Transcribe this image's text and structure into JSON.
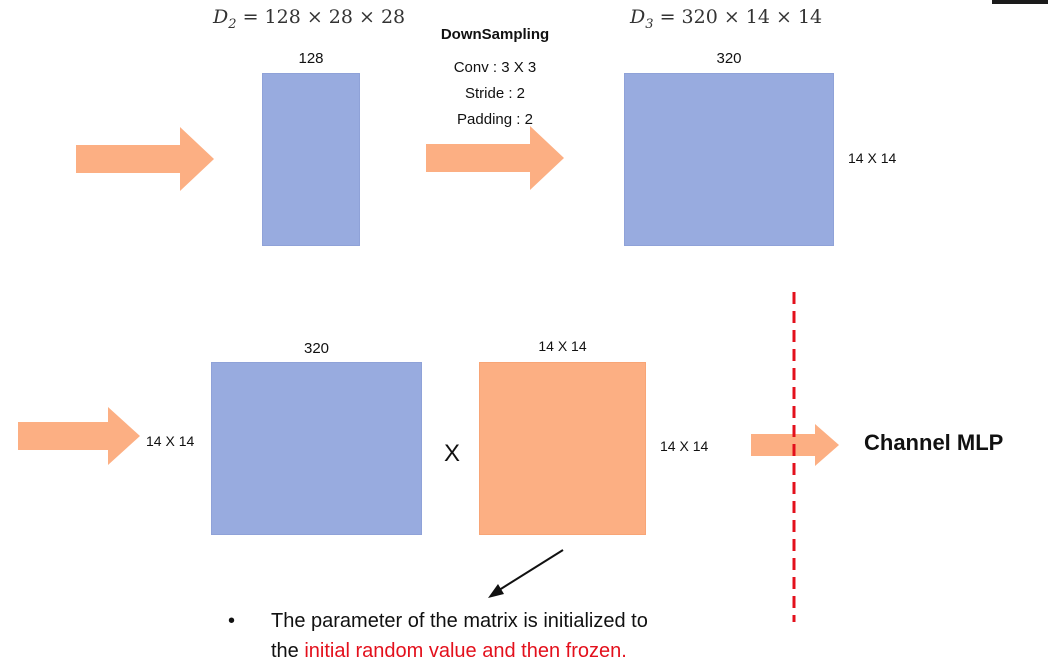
{
  "colors": {
    "blue_block": "#98abdf",
    "orange_block": "#fcaf83",
    "arrow": "#fcaf83",
    "divider": "#e3101c",
    "highlight": "#e3101c"
  },
  "top": {
    "d2_label": {
      "var": "D",
      "sub": "2",
      "expr": "= 128 × 28 × 28"
    },
    "d3_label": {
      "var": "D",
      "sub": "3",
      "expr": "= 320 × 14 × 14"
    },
    "block1_top": "128",
    "downsampling": {
      "title": "DownSampling",
      "conv": "Conv : 3 X 3",
      "stride": "Stride : 2",
      "padding": "Padding : 2"
    },
    "block2_top": "320",
    "block2_side": "14 X 14"
  },
  "bottom": {
    "block_blue_top": "320",
    "block_blue_left": "14 X 14",
    "multiply": "X",
    "block_orange_top": "14 X 14",
    "block_orange_right": "14 X 14",
    "output_label": "Channel MLP"
  },
  "note": {
    "bullet": "•",
    "line1": "The parameter of the matrix is initialized to",
    "line2_prefix": "the ",
    "line2_highlight": "initial random value and then frozen."
  },
  "icons": [
    "right-arrow-icon",
    "diagonal-arrow-icon"
  ]
}
